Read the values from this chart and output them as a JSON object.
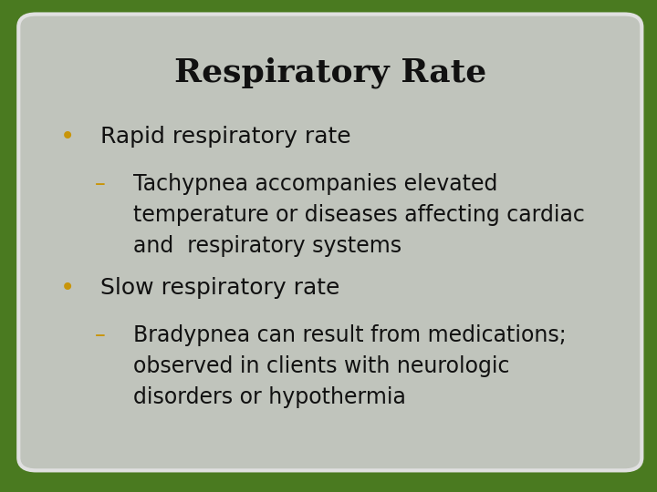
{
  "title": "Respiratory Rate",
  "background_outer": "#4a7a20",
  "card_background": "#c0c4bc",
  "card_edge": "#e0e0e0",
  "title_color": "#111111",
  "title_fontsize": 26,
  "bullet_color": "#c8950a",
  "text_color": "#111111",
  "dash_color": "#c8950a",
  "bullet1": "Rapid respiratory rate",
  "sub1_line1": "Tachypnea accompanies elevated",
  "sub1_line2": "temperature or diseases affecting cardiac",
  "sub1_line3": "and  respiratory systems",
  "bullet2": "Slow respiratory rate",
  "sub2_line1": "Bradypnea can result from medications;",
  "sub2_line2": "observed in clients with neurologic",
  "sub2_line3": "disorders or hypothermia",
  "main_fontsize": 18,
  "sub_fontsize": 17
}
